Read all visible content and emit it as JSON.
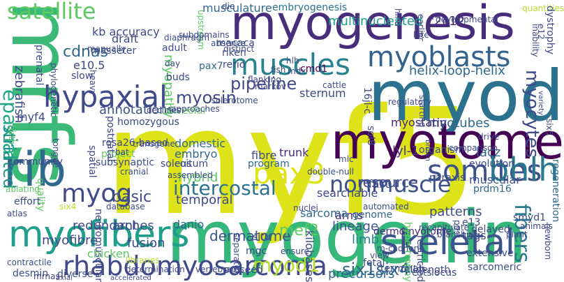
{
  "words": [
    {
      "text": "myf5",
      "color": "#dde318"
    },
    {
      "text": "mrfs",
      "color": "#3aba76"
    },
    {
      "text": "myod",
      "color": "#2c728e"
    },
    {
      "text": "myogenin",
      "color": "#35b779"
    },
    {
      "text": "myogenesis",
      "color": "#472d7b"
    },
    {
      "text": "myotome",
      "color": "#440154"
    },
    {
      "text": "skeletal",
      "color": "#3b528b"
    },
    {
      "text": "myofibers",
      "color": "#1f9e89"
    },
    {
      "text": "muscles",
      "color": "#26828e"
    },
    {
      "text": "myoblasts",
      "color": "#33638d"
    },
    {
      "text": "satellite",
      "color": "#5ec962"
    },
    {
      "text": "hypaxial",
      "color": "#3e4a89"
    },
    {
      "text": "somites",
      "color": "#3b528b"
    },
    {
      "text": "bhlh",
      "color": "#2a788e"
    },
    {
      "text": "epaxial",
      "color": "#22a884"
    },
    {
      "text": "pax3",
      "color": "#dde318"
    },
    {
      "text": "rhabdomyosarcoma",
      "color": "#3e4a89"
    },
    {
      "text": "rib",
      "color": "#31688e"
    },
    {
      "text": "nonmuscle",
      "color": "#3b528b"
    },
    {
      "text": "intercostal",
      "color": "#2c728e"
    },
    {
      "text": "myog",
      "color": "#3e4a89"
    },
    {
      "text": "striated",
      "color": "#21918c"
    },
    {
      "text": "fibers",
      "color": "#2a788e"
    },
    {
      "text": "myocytes",
      "color": "#3e4a89"
    },
    {
      "text": "myosin",
      "color": "#3e4a89"
    },
    {
      "text": "myod1",
      "color": "#b5de2b"
    },
    {
      "text": "six1six4",
      "color": "#31688e"
    },
    {
      "text": "musculature",
      "color": "#31688e"
    },
    {
      "text": "multinucleated",
      "color": "#1f9e89"
    },
    {
      "text": "c2c12",
      "color": "#472d7b"
    },
    {
      "text": "embryogenesis",
      "color": "#2c728e"
    },
    {
      "text": "regeneration",
      "color": "#31688e"
    },
    {
      "text": "helix-loop-helix",
      "color": "#31688e"
    },
    {
      "text": "pipeline",
      "color": "#3e4a89"
    },
    {
      "text": "myotubes",
      "color": "#31688e"
    },
    {
      "text": "myostatin",
      "color": "#482878"
    },
    {
      "text": "resource",
      "color": "#3e4a89"
    },
    {
      "text": "lyl-1",
      "color": "#46327e"
    },
    {
      "text": "annotations",
      "color": "#3b528b"
    },
    {
      "text": "dermatome",
      "color": "#3b528b"
    },
    {
      "text": "cdnas",
      "color": "#31688e"
    },
    {
      "text": "myopathy",
      "color": "#5ec962"
    },
    {
      "text": "pax7",
      "color": "#31688e"
    },
    {
      "text": "e10.5",
      "color": "#3e4a89"
    },
    {
      "text": "trunk",
      "color": "#482878"
    },
    {
      "text": "embryo",
      "color": "#31688e"
    },
    {
      "text": "soleus",
      "color": "#3e4a89"
    },
    {
      "text": "basic",
      "color": "#3e4a89"
    },
    {
      "text": "temporal",
      "color": "#3e4a89"
    },
    {
      "text": "myofibre",
      "color": "#3e4a89"
    },
    {
      "text": "fusion",
      "color": "#3e4a89"
    },
    {
      "text": "arches",
      "color": "#3e4a89"
    },
    {
      "text": "redundant",
      "color": "#3e4a89"
    },
    {
      "text": "danio",
      "color": "#31688e"
    },
    {
      "text": "neuromuscular",
      "color": "#3e4a89"
    },
    {
      "text": "lineage",
      "color": "#3b528b"
    },
    {
      "text": "arms",
      "color": "#482878"
    },
    {
      "text": "genome",
      "color": "#31688e"
    },
    {
      "text": "mef2",
      "color": "#5ec962"
    },
    {
      "text": "limb",
      "color": "#26828e"
    },
    {
      "text": "precursors",
      "color": "#31688e"
    },
    {
      "text": "sarcoma",
      "color": "#31688e"
    },
    {
      "text": "dermomyotome",
      "color": "#482878"
    },
    {
      "text": "evolution",
      "color": "#3e4a89"
    },
    {
      "text": "organism",
      "color": "#3e4a89"
    },
    {
      "text": "lacz",
      "color": "#31688e"
    },
    {
      "text": "muscular",
      "color": "#3b528b"
    },
    {
      "text": "prdm16",
      "color": "#31688e"
    },
    {
      "text": "fibre",
      "color": "#3e4a89"
    },
    {
      "text": "program",
      "color": "#31688e"
    },
    {
      "text": "hybrid",
      "color": "#5ec962"
    },
    {
      "text": "domestic",
      "color": "#31688e"
    },
    {
      "text": "coitum",
      "color": "#3b528b"
    },
    {
      "text": "alveolar",
      "color": "#5ec962"
    },
    {
      "text": "homozygous",
      "color": "#3e4a89"
    },
    {
      "text": "sternum",
      "color": "#3e4a89"
    },
    {
      "text": "cmd1",
      "color": "#440154"
    },
    {
      "text": "riken",
      "color": "#3e4a89"
    },
    {
      "text": "rerio",
      "color": "#3e4a89"
    },
    {
      "text": "macaca",
      "color": "#3e4a89"
    },
    {
      "text": "draft",
      "color": "#3e4a89"
    },
    {
      "text": "slow",
      "color": "#3e4a89"
    },
    {
      "text": "buds",
      "color": "#3e4a89"
    },
    {
      "text": "day",
      "color": "#3e4a89"
    },
    {
      "text": "fish",
      "color": "#3e4a89"
    },
    {
      "text": "mdx",
      "color": "#3e4a89"
    },
    {
      "text": "searchable",
      "color": "#3e4a89"
    },
    {
      "text": "tags",
      "color": "#3e4a89"
    },
    {
      "text": "e13",
      "color": "#3e4a89"
    },
    {
      "text": "patterns",
      "color": "#3e4a89"
    },
    {
      "text": "paraxis",
      "color": "#3e4a89"
    },
    {
      "text": "smyd1",
      "color": "#3e4a89"
    },
    {
      "text": "fast",
      "color": "#3e4a89"
    },
    {
      "text": "sol8",
      "color": "#3e4a89"
    },
    {
      "text": "16jl-c",
      "color": "#3e4a89"
    },
    {
      "text": "terminal",
      "color": "#3e4a89"
    },
    {
      "text": "ests",
      "color": "#3e4a89"
    },
    {
      "text": "locus",
      "color": "#3e4a89"
    },
    {
      "text": "sarcomeric",
      "color": "#3e4a89"
    },
    {
      "text": "determination",
      "color": "#3e4a89"
    },
    {
      "text": "vertebrates",
      "color": "#3e4a89"
    },
    {
      "text": "desmin",
      "color": "#3e4a89"
    },
    {
      "text": "contractile",
      "color": "#3e4a89"
    },
    {
      "text": "chicken",
      "color": "#5ec962"
    },
    {
      "text": "kilobases",
      "color": "#3e4a89"
    },
    {
      "text": "hypertrophy",
      "color": "#5ec962"
    },
    {
      "text": "mgc",
      "color": "#3e4a89"
    },
    {
      "text": "situ",
      "color": "#3e4a89"
    },
    {
      "text": "zebrafish",
      "color": "#3e4a89"
    },
    {
      "text": "phylogenetic",
      "color": "#3e4a89"
    },
    {
      "text": "myf4",
      "color": "#3e4a89"
    },
    {
      "text": "kb accuracy",
      "color": "#3e4a89"
    },
    {
      "text": "masseter",
      "color": "#3e4a89"
    },
    {
      "text": "prenatal",
      "color": "#3e4a89"
    },
    {
      "text": "adult",
      "color": "#3e4a89"
    },
    {
      "text": "heavy",
      "color": "#3e4a89"
    },
    {
      "text": "quality",
      "color": "#5ec962"
    },
    {
      "text": "subsynaptic",
      "color": "#3e4a89"
    },
    {
      "text": "community",
      "color": "#3e4a89"
    },
    {
      "text": "birth",
      "color": "#5ec962"
    },
    {
      "text": "tongue",
      "color": "#3e4a89"
    },
    {
      "text": "spatial",
      "color": "#3e4a89"
    },
    {
      "text": "project",
      "color": "#5ec962"
    },
    {
      "text": "rosa26-based",
      "color": "#3e4a89"
    },
    {
      "text": "postnatal",
      "color": "#3e4a89"
    },
    {
      "text": "six4",
      "color": "#b5de2b"
    },
    {
      "text": "die",
      "color": "#3e4a89"
    },
    {
      "text": "upstream",
      "color": "#5ec962"
    },
    {
      "text": "quantities",
      "color": "#b5de2b"
    },
    {
      "text": "hind",
      "color": "#3e4a89"
    },
    {
      "text": "dystrophy",
      "color": "#3e4a89"
    },
    {
      "text": "earlier",
      "color": "#3e4a89"
    },
    {
      "text": "developmental",
      "color": "#3e4a89"
    },
    {
      "text": "e12",
      "color": "#3e4a89"
    },
    {
      "text": "inability",
      "color": "#3e4a89"
    },
    {
      "text": "six5",
      "color": "#3e4a89"
    },
    {
      "text": "flanking",
      "color": "#3e4a89"
    },
    {
      "text": "markov",
      "color": "#3e4a89"
    },
    {
      "text": "ablating",
      "color": "#5ec962"
    },
    {
      "text": "effort",
      "color": "#3e4a89"
    },
    {
      "text": "atlas",
      "color": "#3e4a89"
    },
    {
      "text": "database",
      "color": "#3e4a89"
    },
    {
      "text": "axial",
      "color": "#3e4a89"
    },
    {
      "text": "libraries",
      "color": "#b5de2b"
    },
    {
      "text": "diverse",
      "color": "#3e4a89"
    },
    {
      "text": "mrnas",
      "color": "#3e4a89"
    },
    {
      "text": "accelerated",
      "color": "#3e4a89"
    },
    {
      "text": "proceed",
      "color": "#3e4a89"
    },
    {
      "text": "separate",
      "color": "#3e4a89"
    },
    {
      "text": "fetal",
      "color": "#3e4a89"
    },
    {
      "text": "full-length",
      "color": "#3e4a89"
    },
    {
      "text": "restricted",
      "color": "#3e4a89"
    },
    {
      "text": "newborn",
      "color": "#3e4a89"
    },
    {
      "text": "extensive",
      "color": "#3e4a89"
    },
    {
      "text": "branchial",
      "color": "#3e4a89"
    },
    {
      "text": "delayed",
      "color": "#3e4a89"
    },
    {
      "text": "m-cadherin",
      "color": "#3e4a89"
    },
    {
      "text": "view",
      "color": "#3e4a89"
    },
    {
      "text": "subdomains",
      "color": "#3e4a89"
    },
    {
      "text": "diaphragm",
      "color": "#3e4a89"
    },
    {
      "text": "absence",
      "color": "#3e4a89"
    },
    {
      "text": "distinct",
      "color": "#3e4a89"
    },
    {
      "text": "manually",
      "color": "#3e4a89"
    },
    {
      "text": "hlh",
      "color": "#3e4a89"
    },
    {
      "text": "late",
      "color": "#3e4a89"
    },
    {
      "text": "double-null",
      "color": "#3e4a89"
    },
    {
      "text": "ensure",
      "color": "#3e4a89"
    },
    {
      "text": "cattle",
      "color": "#3e4a89"
    },
    {
      "text": "sclerotome",
      "color": "#3e4a89"
    },
    {
      "text": "regulatory",
      "color": "#3e4a89"
    },
    {
      "text": "brown",
      "color": "#3e4a89"
    },
    {
      "text": "comparison",
      "color": "#3e4a89"
    },
    {
      "text": "variety",
      "color": "#3e4a89"
    },
    {
      "text": "bat",
      "color": "#3e4a89"
    },
    {
      "text": "transgene",
      "color": "#3e4a89"
    },
    {
      "text": "drive",
      "color": "#3e4a89"
    },
    {
      "text": "declines",
      "color": "#3e4a89"
    },
    {
      "text": "approaches",
      "color": "#3e4a89"
    },
    {
      "text": "cranial",
      "color": "#3e4a89"
    },
    {
      "text": "assembled",
      "color": "#3e4a89"
    },
    {
      "text": "mlc",
      "color": "#3e4a89"
    },
    {
      "text": "starting",
      "color": "#3e4a89"
    },
    {
      "text": "recapitulate",
      "color": "#3e4a89"
    },
    {
      "text": "post",
      "color": "#3e4a89"
    },
    {
      "text": "plant",
      "color": "#3e4a89"
    },
    {
      "text": "animals",
      "color": "#3e4a89"
    },
    {
      "text": "automated",
      "color": "#3e4a89"
    },
    {
      "text": "nuclei",
      "color": "#3e4a89"
    }
  ]
}
